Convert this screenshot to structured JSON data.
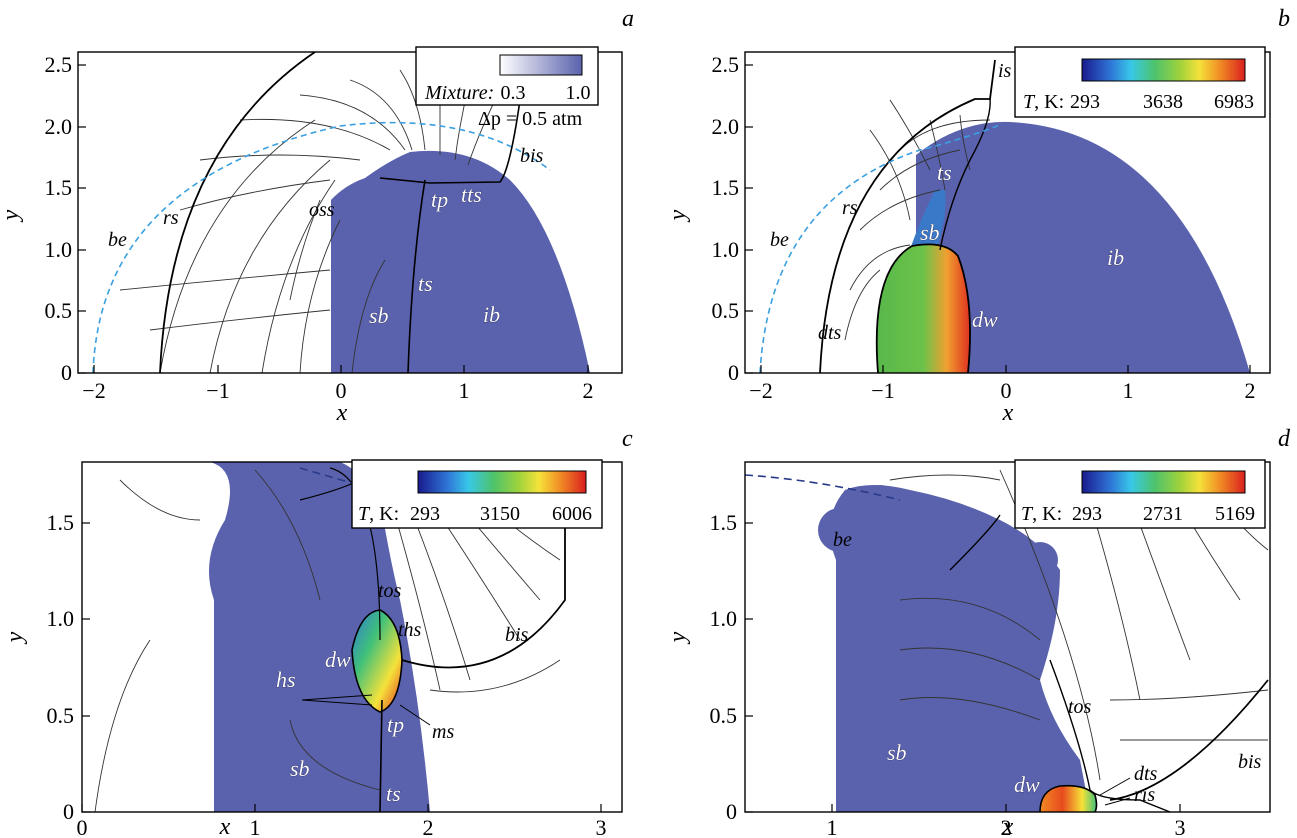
{
  "panels": [
    {
      "id": "a",
      "letter": "a",
      "xlabel": "x",
      "ylabel": "y",
      "xticks": [
        "−2",
        "−1",
        "0",
        "1",
        "2"
      ],
      "yticks": [
        "0",
        "0.5",
        "1.0",
        "1.5",
        "2.0",
        "2.5"
      ],
      "legend": {
        "label": "Mixture:",
        "min": "0.3",
        "max": "1.0",
        "extra": "Δp = 0.5 atm"
      },
      "labels": [
        "be",
        "rs",
        "oss",
        "tp",
        "tts",
        "bis",
        "ts",
        "sb",
        "ib"
      ]
    },
    {
      "id": "b",
      "letter": "b",
      "xlabel": "x",
      "ylabel": "y",
      "xticks": [
        "−2",
        "−1",
        "0",
        "1",
        "2"
      ],
      "yticks": [
        "0",
        "0.5",
        "1.0",
        "1.5",
        "2.0",
        "2.5"
      ],
      "legend": {
        "label": "T, K:",
        "min": "293",
        "mid": "3638",
        "max": "6983"
      },
      "labels": [
        "is",
        "ts",
        "rs",
        "be",
        "sb",
        "ib",
        "dw",
        "dts"
      ]
    },
    {
      "id": "c",
      "letter": "c",
      "xlabel": "x",
      "ylabel": "y",
      "xticks": [
        "0",
        "1",
        "2",
        "3"
      ],
      "yticks": [
        "0",
        "0.5",
        "1.0",
        "1.5"
      ],
      "legend": {
        "label": "T, K:",
        "min": "293",
        "mid": "3150",
        "max": "6006"
      },
      "labels": [
        "tos",
        "ths",
        "bis",
        "dw",
        "hs",
        "tp",
        "ms",
        "sb",
        "ts"
      ]
    },
    {
      "id": "d",
      "letter": "d",
      "xlabel": "x",
      "ylabel": "y",
      "xticks": [
        "1",
        "2",
        "3"
      ],
      "yticks": [
        "0",
        "0.5",
        "1.0",
        "1.5"
      ],
      "legend": {
        "label": "T, K:",
        "min": "293",
        "mid": "2731",
        "max": "5169"
      },
      "labels": [
        "be",
        "tos",
        "sb",
        "dw",
        "dts",
        "ris",
        "bis"
      ]
    }
  ],
  "colors": {
    "mixture": "#5a62ad",
    "dashed_boundary": "#3aa0e0",
    "contour": "#333333"
  }
}
